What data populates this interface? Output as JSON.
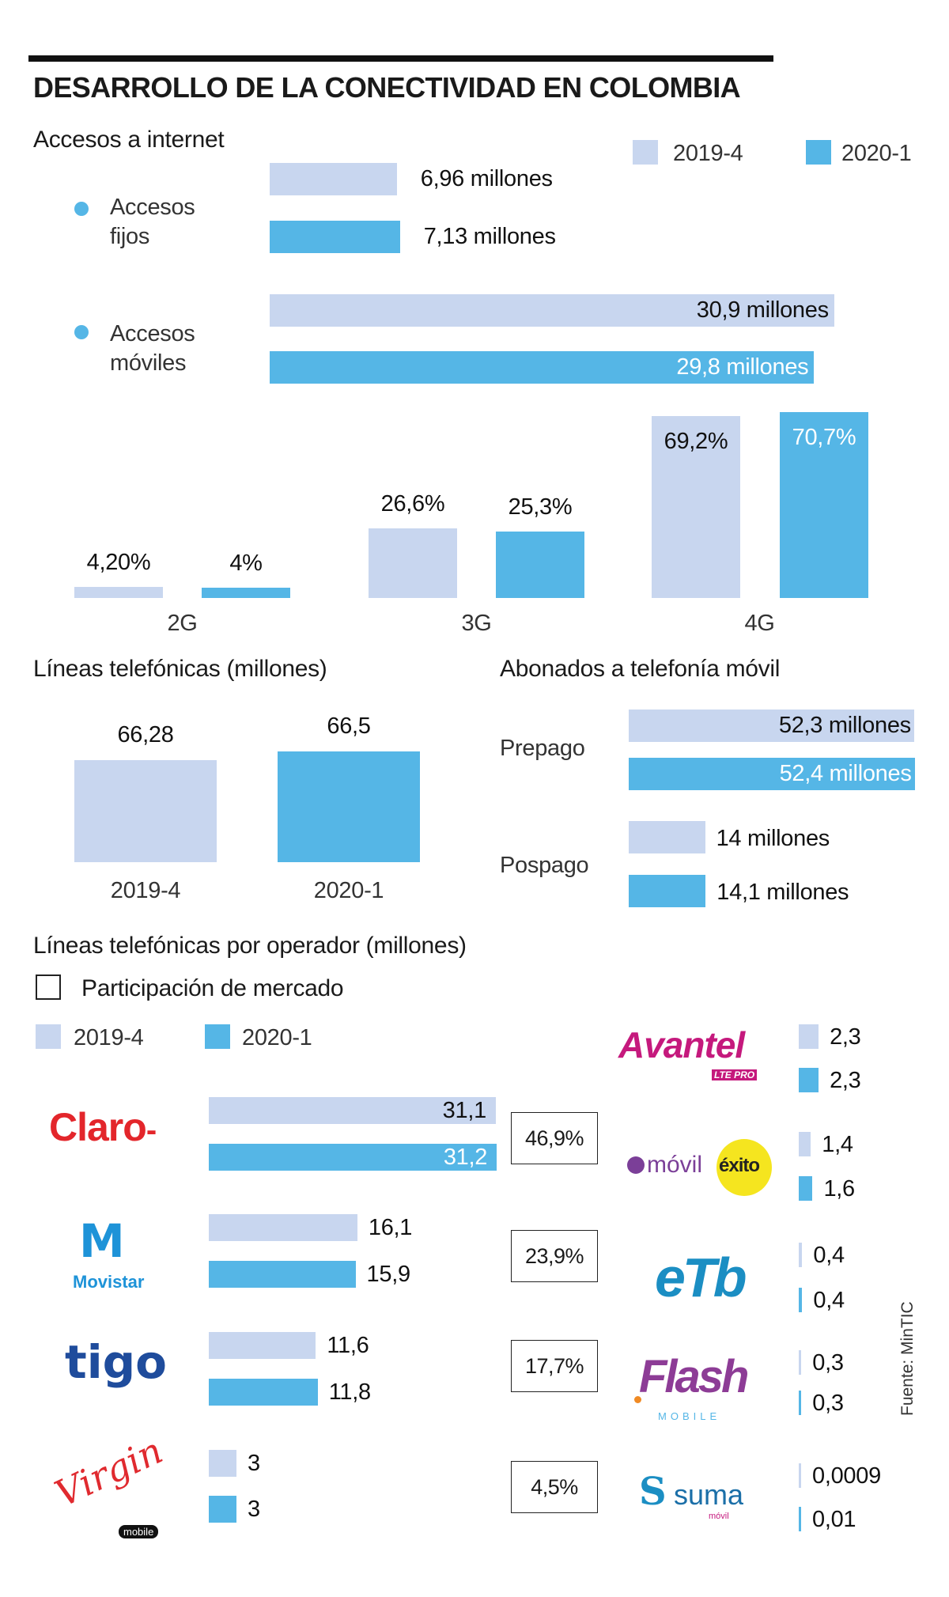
{
  "title": "DESARROLLO DE LA CONECTIVIDAD EN COLOMBIA",
  "colors": {
    "period_2019_4": "#c8d6ef",
    "period_2020_1": "#55b6e6",
    "bullet": "#55b6e6"
  },
  "legend": [
    "2019-4",
    "2020-1"
  ],
  "sections": {
    "internet": "Accesos a internet",
    "fixed_line1": "Accesos",
    "fixed_line2": "fijos",
    "mobile_line1": "Accesos",
    "mobile_line2": "móviles",
    "lines": "Líneas telefónicas (millones)",
    "subscribers": "Abonados a telefonía móvil",
    "operators": "Líneas telefónicas por operador (millones)",
    "market_share": "Participación de mercado"
  },
  "source": "Fuente: MinTIC",
  "chart_data": [
    {
      "type": "bar",
      "orientation": "horizontal",
      "title": "Accesos a internet",
      "categories": [
        "Accesos fijos",
        "Accesos móviles"
      ],
      "series": [
        {
          "name": "2019-4",
          "values": [
            6.96,
            30.9
          ],
          "labels": [
            "6,96 millones",
            "30,9 millones"
          ]
        },
        {
          "name": "2020-1",
          "values": [
            7.13,
            29.8
          ],
          "labels": [
            "7,13 millones",
            "29,8 millones"
          ]
        }
      ]
    },
    {
      "type": "bar",
      "orientation": "vertical",
      "categories": [
        "2G",
        "3G",
        "4G"
      ],
      "series": [
        {
          "name": "2019-4",
          "values": [
            4.2,
            26.6,
            69.2
          ],
          "labels": [
            "4,20%",
            "26,6%",
            "69,2%"
          ]
        },
        {
          "name": "2020-1",
          "values": [
            4,
            25.3,
            70.7
          ],
          "labels": [
            "4%",
            "25,3%",
            "70,7%"
          ]
        }
      ]
    },
    {
      "type": "bar",
      "orientation": "vertical",
      "title": "Líneas telefónicas (millones)",
      "categories": [
        "2019-4",
        "2020-1"
      ],
      "values": [
        66.28,
        66.5
      ],
      "labels": [
        "66,28",
        "66,5"
      ]
    },
    {
      "type": "bar",
      "orientation": "horizontal",
      "title": "Abonados a telefonía móvil",
      "categories": [
        "Prepago",
        "Pospago"
      ],
      "series": [
        {
          "name": "2019-4",
          "values": [
            52.3,
            14
          ],
          "labels": [
            "52,3 millones",
            "14 millones"
          ]
        },
        {
          "name": "2020-1",
          "values": [
            52.4,
            14.1
          ],
          "labels": [
            "52,4 millones",
            "14,1 millones"
          ]
        }
      ]
    },
    {
      "type": "bar",
      "orientation": "horizontal",
      "title": "Líneas telefónicas por operador (millones)",
      "categories": [
        "Claro",
        "Movistar",
        "Tigo",
        "Virgin Mobile",
        "Avantel",
        "Móvil Éxito",
        "ETB",
        "Flash Mobile",
        "Suma Móvil"
      ],
      "series": [
        {
          "name": "2019-4",
          "values": [
            31.1,
            16.1,
            11.6,
            3,
            2.3,
            1.4,
            0.4,
            0.3,
            0.0009
          ],
          "labels": [
            "31,1",
            "16,1",
            "11,6",
            "3",
            "2,3",
            "1,4",
            "0,4",
            "0,3",
            "0,0009"
          ]
        },
        {
          "name": "2020-1",
          "values": [
            31.2,
            15.9,
            11.8,
            3,
            2.3,
            1.6,
            0.4,
            0.3,
            0.01
          ],
          "labels": [
            "31,2",
            "15,9",
            "11,8",
            "3",
            "2,3",
            "1,6",
            "0,4",
            "0,3",
            "0,01"
          ]
        }
      ],
      "market_share": [
        "46,9%",
        "23,9%",
        "17,7%",
        "4,5%"
      ]
    }
  ],
  "logos": {
    "claro": "Claro",
    "movistar": "Movistar",
    "tigo": "tigo",
    "virgin": "Virgin",
    "virgin_sub": "mobile",
    "avantel": "Avantel",
    "avantel_sub": "LTE PRO",
    "movil": "móvil",
    "exito": "éxito",
    "etb": "eTb",
    "flash": "Flash",
    "flash_sub": "MOBILE",
    "suma": "suma",
    "suma_sub": "móvil"
  }
}
